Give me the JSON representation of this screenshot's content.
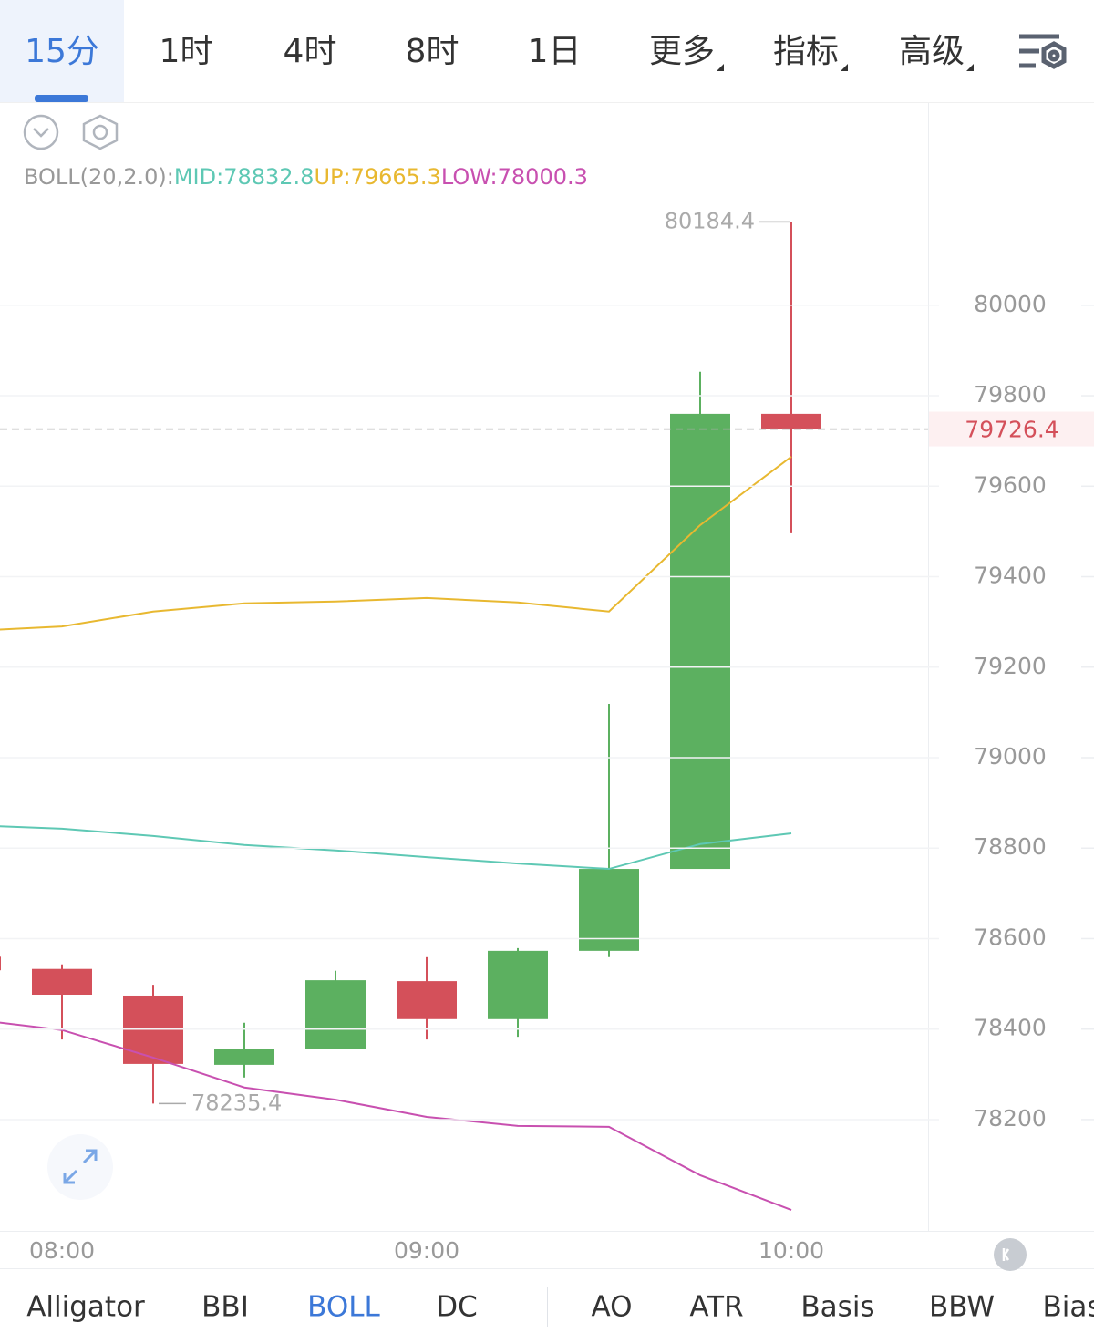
{
  "tabs": [
    "15分",
    "1时",
    "4时",
    "8时",
    "1日",
    "更多",
    "指标",
    "高级"
  ],
  "indicator_tabs": [
    "Alligator",
    "BBI",
    "BOLL",
    "DC",
    "AO",
    "ATR",
    "Basis",
    "BBW",
    "Bias"
  ],
  "chart_data": {
    "type": "candlestick",
    "indicator": "BOLL(20,2.0):",
    "categories": [
      null,
      "08:00",
      null,
      null,
      null,
      "09:00",
      null,
      null,
      null,
      "10:00"
    ],
    "open": [
      78560,
      78533,
      78474,
      78321,
      78357,
      78506,
      78422,
      78573,
      78754,
      79760
    ],
    "high": [
      78570,
      78543,
      78498,
      78414,
      78529,
      78559,
      78579,
      79119,
      79853,
      80184.4
    ],
    "low": [
      78500,
      78377,
      78235.4,
      78293,
      78357,
      78377,
      78383,
      78559,
      78754,
      79496
    ],
    "close": [
      78530,
      78476,
      78323,
      78357,
      78508,
      78422,
      78573,
      78754,
      79760,
      79726.4
    ],
    "up_color": "#5cb060",
    "down_color": "#d4505a",
    "lines": [
      {
        "name": "MID:",
        "color": "#5ec8b4",
        "values": [
          78851,
          78843,
          78827,
          78807,
          78795,
          78780,
          78766,
          78754,
          78809,
          78832.8
        ]
      },
      {
        "name": "UP:",
        "color": "#e8b830",
        "values": [
          79280,
          79290,
          79323,
          79341,
          79345,
          79353,
          79343,
          79323,
          79514,
          79665.3
        ]
      },
      {
        "name": "LOW:",
        "color": "#c850b0",
        "values": [
          78422,
          78398,
          78337,
          78271,
          78244,
          78206,
          78186,
          78184,
          78077,
          78000.3
        ]
      }
    ],
    "ylim": [
      77954,
      80443
    ],
    "yticks": [
      78200,
      78400,
      78600,
      78800,
      79000,
      79200,
      79400,
      79600,
      79800,
      80000
    ],
    "grid": true
  }
}
